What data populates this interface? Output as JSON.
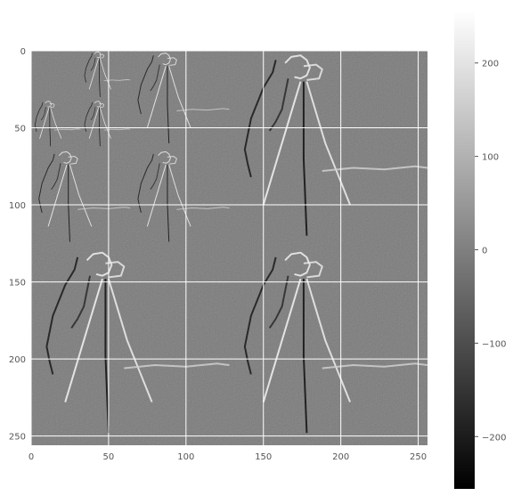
{
  "chart_data": [
    {
      "type": "heatmap",
      "title": "",
      "xlabel": "",
      "ylabel": "",
      "xlim": [
        0,
        256
      ],
      "ylim": [
        256,
        0
      ],
      "x_ticks": [
        0,
        50,
        100,
        150,
        200,
        250
      ],
      "y_ticks": [
        0,
        50,
        100,
        150,
        200,
        250
      ],
      "x_tick_labels": [
        "0",
        "50",
        "100",
        "150",
        "200",
        "250"
      ],
      "y_tick_labels": [
        "0",
        "50",
        "100",
        "150",
        "200",
        "250"
      ],
      "grid": true,
      "colormap": "gray",
      "background_value": 0,
      "description_of_image": "Multi-level wavelet/gradient detail-coefficient mosaic of the cameraman image; mostly mid-gray with sharp edge responses.",
      "mosaic_blocks": [
        {
          "level": 1,
          "region": [
            [
              128,
              256
            ],
            [
              128,
              256
            ]
          ],
          "scale": 1
        },
        {
          "level": 1,
          "region": [
            [
              0,
              128
            ],
            [
              128,
              256
            ]
          ],
          "scale": 1
        },
        {
          "level": 1,
          "region": [
            [
              128,
              256
            ],
            [
              0,
              128
            ]
          ],
          "scale": 1
        },
        {
          "level": 2,
          "region": [
            [
              64,
              128
            ],
            [
              64,
              128
            ]
          ],
          "scale": 2
        },
        {
          "level": 2,
          "region": [
            [
              0,
              64
            ],
            [
              64,
              128
            ]
          ],
          "scale": 2
        },
        {
          "level": 2,
          "region": [
            [
              64,
              128
            ],
            [
              0,
              64
            ]
          ],
          "scale": 2
        },
        {
          "level": 3,
          "region": [
            [
              32,
              64
            ],
            [
              32,
              64
            ]
          ],
          "scale": 4
        },
        {
          "level": 3,
          "region": [
            [
              0,
              32
            ],
            [
              32,
              64
            ]
          ],
          "scale": 4
        },
        {
          "level": 3,
          "region": [
            [
              32,
              64
            ],
            [
              0,
              32
            ]
          ],
          "scale": 4
        }
      ]
    },
    {
      "type": "colorbar",
      "vmin": -256,
      "vmax": 256,
      "ticks": [
        -200,
        -100,
        0,
        100,
        200
      ],
      "tick_labels": [
        "−200",
        "−100",
        "0",
        "100",
        "200"
      ],
      "colormap": "gray"
    }
  ],
  "colors": {
    "grid": "#ffffff",
    "tick_text": "#555555",
    "background": "#ffffff",
    "image_mid": "#7a7a7a"
  }
}
